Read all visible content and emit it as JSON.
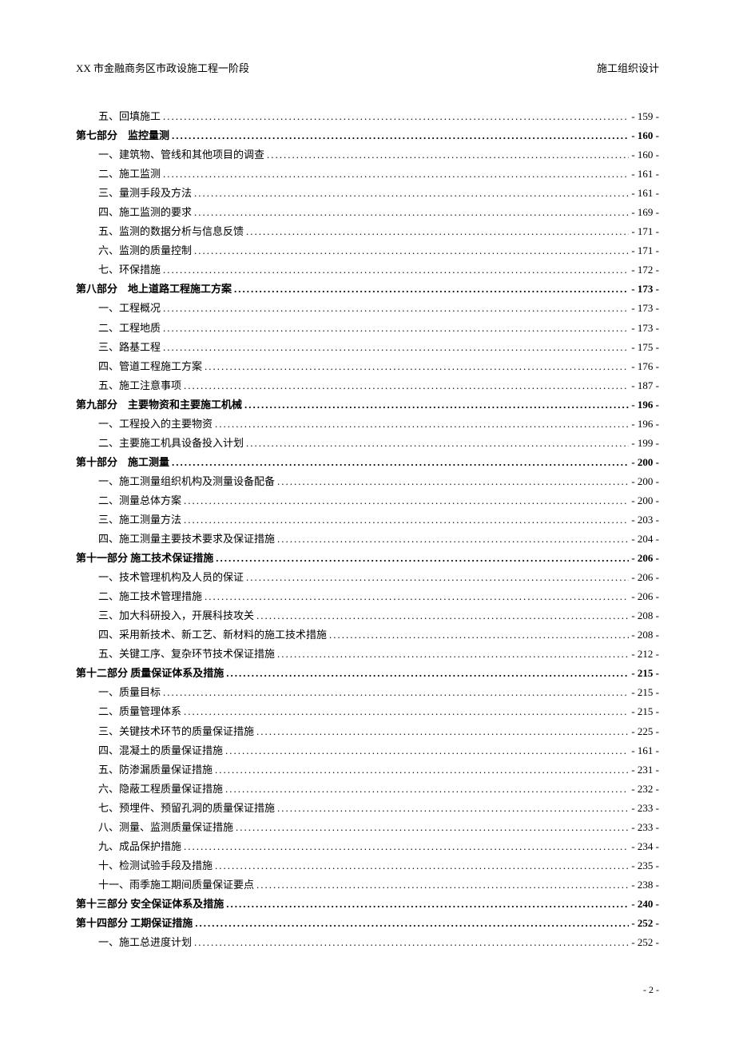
{
  "header": {
    "left": "XX 市金融商务区市政设施工程一阶段",
    "right": "施工组织设计"
  },
  "footer": {
    "page_number": "- 2 -"
  },
  "toc": [
    {
      "type": "sub",
      "label": "五、回填施工",
      "page": "- 159 -",
      "bold": false
    },
    {
      "type": "section",
      "label": "第七部分　监控量测",
      "page": "- 160 -",
      "bold": true
    },
    {
      "type": "sub",
      "label": "一、建筑物、管线和其他项目的调查",
      "page": "- 160 -",
      "bold": false
    },
    {
      "type": "sub",
      "label": "二、施工监测",
      "page": "- 161 -",
      "bold": false
    },
    {
      "type": "sub",
      "label": "三、量测手段及方法",
      "page": "- 161 -",
      "bold": false
    },
    {
      "type": "sub",
      "label": "四、施工监测的要求",
      "page": "- 169 -",
      "bold": false
    },
    {
      "type": "sub",
      "label": "五、监测的数据分析与信息反馈",
      "page": "- 171 -",
      "bold": false
    },
    {
      "type": "sub",
      "label": "六、监测的质量控制",
      "page": "- 171 -",
      "bold": false
    },
    {
      "type": "sub",
      "label": "七、环保措施",
      "page": "- 172 -",
      "bold": false
    },
    {
      "type": "section",
      "label": "第八部分　地上道路工程施工方案",
      "page": "- 173 -",
      "bold": true
    },
    {
      "type": "sub",
      "label": "一、工程概况",
      "page": "- 173 -",
      "bold": false
    },
    {
      "type": "sub",
      "label": "二、工程地质",
      "page": "- 173 -",
      "bold": false
    },
    {
      "type": "sub",
      "label": "三、路基工程",
      "page": "- 175 -",
      "bold": false
    },
    {
      "type": "sub",
      "label": "四、管道工程施工方案",
      "page": "- 176 -",
      "bold": false
    },
    {
      "type": "sub",
      "label": "五、施工注意事项",
      "page": "- 187 -",
      "bold": false
    },
    {
      "type": "section",
      "label": "第九部分　主要物资和主要施工机械",
      "page": "- 196 -",
      "bold": true
    },
    {
      "type": "sub",
      "label": "一、工程投入的主要物资",
      "page": "- 196 -",
      "bold": false
    },
    {
      "type": "sub",
      "label": "二、主要施工机具设备投入计划",
      "page": "- 199 -",
      "bold": false
    },
    {
      "type": "section",
      "label": "第十部分　施工测量",
      "page": "- 200 -",
      "bold": true
    },
    {
      "type": "sub",
      "label": "一、施工测量组织机构及测量设备配备",
      "page": "- 200 -",
      "bold": false
    },
    {
      "type": "sub",
      "label": "二、测量总体方案",
      "page": "- 200 -",
      "bold": false
    },
    {
      "type": "sub",
      "label": "三、施工测量方法",
      "page": "- 203 -",
      "bold": false
    },
    {
      "type": "sub",
      "label": "四、施工测量主要技术要求及保证措施",
      "page": "- 204 -",
      "bold": false
    },
    {
      "type": "section",
      "label": "第十一部分 施工技术保证措施",
      "page": "- 206 -",
      "bold": true
    },
    {
      "type": "sub",
      "label": "一、技术管理机构及人员的保证",
      "page": "- 206 -",
      "bold": false
    },
    {
      "type": "sub",
      "label": "二、施工技术管理措施",
      "page": "- 206 -",
      "bold": false
    },
    {
      "type": "sub",
      "label": "三、加大科研投入，开展科技攻关",
      "page": "- 208 -",
      "bold": false
    },
    {
      "type": "sub",
      "label": "四、采用新技术、新工艺、新材料的施工技术措施",
      "page": "- 208 -",
      "bold": false
    },
    {
      "type": "sub",
      "label": "五、关键工序、复杂环节技术保证措施",
      "page": "- 212 -",
      "bold": false
    },
    {
      "type": "section",
      "label": "第十二部分 质量保证体系及措施",
      "page": "- 215 -",
      "bold": true
    },
    {
      "type": "sub",
      "label": "一、质量目标",
      "page": "- 215 -",
      "bold": false
    },
    {
      "type": "sub",
      "label": "二、质量管理体系",
      "page": "- 215 -",
      "bold": false
    },
    {
      "type": "sub",
      "label": "三、关键技术环节的质量保证措施",
      "page": "- 225 -",
      "bold": false
    },
    {
      "type": "sub",
      "label": "四、混凝土的质量保证措施",
      "page": "- 161 -",
      "bold": false
    },
    {
      "type": "sub",
      "label": "五、防渗漏质量保证措施",
      "page": "- 231 -",
      "bold": false
    },
    {
      "type": "sub",
      "label": "六、隐蔽工程质量保证措施",
      "page": "- 232 -",
      "bold": false
    },
    {
      "type": "sub",
      "label": "七、预埋件、预留孔洞的质量保证措施",
      "page": "- 233 -",
      "bold": false
    },
    {
      "type": "sub",
      "label": "八、测量、监测质量保证措施",
      "page": "- 233 -",
      "bold": false
    },
    {
      "type": "sub",
      "label": "九、成品保护措施",
      "page": "- 234 -",
      "bold": false
    },
    {
      "type": "sub",
      "label": "十、检测试验手段及措施",
      "page": "- 235 -",
      "bold": false
    },
    {
      "type": "sub",
      "label": "十一、雨季施工期间质量保证要点",
      "page": "- 238 -",
      "bold": false
    },
    {
      "type": "section",
      "label": "第十三部分 安全保证体系及措施",
      "page": "- 240 -",
      "bold": true
    },
    {
      "type": "section",
      "label": "第十四部分 工期保证措施",
      "page": "- 252 -",
      "bold": true
    },
    {
      "type": "sub",
      "label": "一、施工总进度计划",
      "page": "- 252 -",
      "bold": false
    }
  ]
}
